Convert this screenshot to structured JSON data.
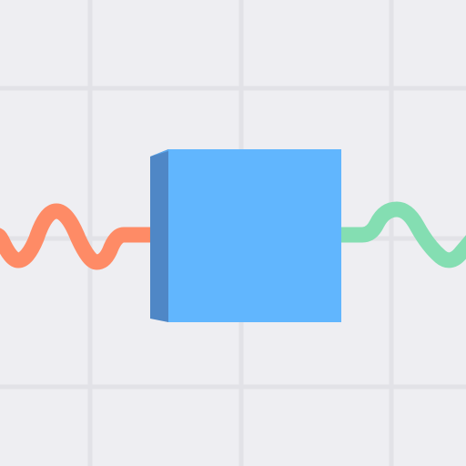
{
  "scene": {
    "background_color": "#eeeef2",
    "grid_line_color": "#e2e2e7",
    "block": {
      "name": "block",
      "front_color": "#61b6fe",
      "side_color": "#4f87c6",
      "top_color": "#5aa6ea"
    },
    "left_spring": {
      "name": "left-spring",
      "color": "#fe8b66"
    },
    "right_spring": {
      "name": "right-spring",
      "color": "#84deb2"
    }
  }
}
